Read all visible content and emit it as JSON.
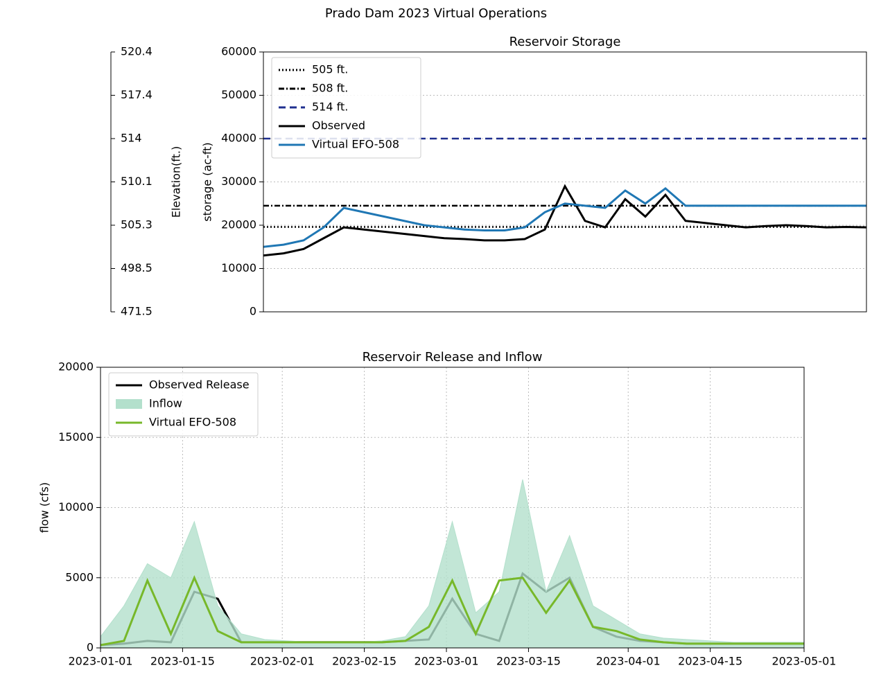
{
  "title": "Prado Dam 2023 Virtual Operations",
  "chart_data": [
    {
      "type": "line",
      "title": "Reservoir Storage",
      "ylabel": "storage (ac-ft)",
      "y2label": "Elevation(ft.)",
      "xlim": [
        "2023-01-01",
        "2023-05-01"
      ],
      "x": [
        "2023-01-01",
        "2023-01-05",
        "2023-01-09",
        "2023-01-13",
        "2023-01-17",
        "2023-01-21",
        "2023-01-25",
        "2023-01-29",
        "2023-02-02",
        "2023-02-06",
        "2023-02-10",
        "2023-02-14",
        "2023-02-18",
        "2023-02-22",
        "2023-02-26",
        "2023-03-02",
        "2023-03-06",
        "2023-03-10",
        "2023-03-14",
        "2023-03-18",
        "2023-03-22",
        "2023-03-26",
        "2023-03-30",
        "2023-04-03",
        "2023-04-07",
        "2023-04-11",
        "2023-04-15",
        "2023-04-19",
        "2023-04-23",
        "2023-04-27",
        "2023-05-01"
      ],
      "ylim": [
        0,
        60000
      ],
      "yticks": [
        0,
        10000,
        20000,
        30000,
        40000,
        50000,
        60000
      ],
      "y2ticks": [
        471.5,
        498.5,
        505.3,
        510.1,
        514.0,
        517.4,
        520.4
      ],
      "grid": true,
      "legend": "upper left",
      "hlines": [
        {
          "name": "505 ft.",
          "value": 19600,
          "color": "#000000",
          "dash": "2,3"
        },
        {
          "name": "508 ft.",
          "value": 24500,
          "color": "#000000",
          "dash": "8,3,2,3"
        },
        {
          "name": "514 ft.",
          "value": 40000,
          "color": "#1f2f8f",
          "dash": "10,6"
        }
      ],
      "series": [
        {
          "name": "Observed",
          "color": "#000000",
          "values": [
            13000,
            13500,
            14500,
            17000,
            19500,
            19000,
            18500,
            18000,
            17500,
            17000,
            16800,
            16500,
            16500,
            16800,
            19000,
            29000,
            21000,
            19500,
            26000,
            22000,
            27000,
            21000,
            20500,
            20000,
            19500,
            19800,
            20000,
            19800,
            19500,
            19600,
            19500
          ]
        },
        {
          "name": "Virtual EFO-508",
          "color": "#1f77b4",
          "values": [
            15000,
            15500,
            16500,
            19500,
            24000,
            23000,
            22000,
            21000,
            20000,
            19500,
            19000,
            18800,
            18800,
            19500,
            23000,
            25000,
            24500,
            24000,
            28000,
            25000,
            28500,
            24500,
            24500,
            24500,
            24500,
            24500,
            24500,
            24500,
            24500,
            24500,
            24500
          ]
        }
      ]
    },
    {
      "type": "line",
      "title": "Reservoir Release and Inflow",
      "ylabel": "flow (cfs)",
      "xlim": [
        "2023-01-01",
        "2023-05-01"
      ],
      "x": [
        "2023-01-01",
        "2023-01-05",
        "2023-01-09",
        "2023-01-13",
        "2023-01-17",
        "2023-01-21",
        "2023-01-25",
        "2023-01-29",
        "2023-02-02",
        "2023-02-06",
        "2023-02-10",
        "2023-02-14",
        "2023-02-18",
        "2023-02-22",
        "2023-02-26",
        "2023-03-02",
        "2023-03-06",
        "2023-03-10",
        "2023-03-14",
        "2023-03-18",
        "2023-03-22",
        "2023-03-26",
        "2023-03-30",
        "2023-04-03",
        "2023-04-07",
        "2023-04-11",
        "2023-04-15",
        "2023-04-19",
        "2023-04-23",
        "2023-04-27",
        "2023-05-01"
      ],
      "xticks": [
        "2023-01-01",
        "2023-01-15",
        "2023-02-01",
        "2023-02-15",
        "2023-03-01",
        "2023-03-15",
        "2023-04-01",
        "2023-04-15",
        "2023-05-01"
      ],
      "ylim": [
        0,
        20000
      ],
      "yticks": [
        0,
        5000,
        10000,
        15000,
        20000
      ],
      "grid": true,
      "legend": "upper left",
      "series": [
        {
          "name": "Observed Release",
          "color": "#000000",
          "values": [
            200,
            300,
            500,
            400,
            4000,
            3500,
            400,
            400,
            400,
            400,
            400,
            400,
            400,
            500,
            600,
            3500,
            1000,
            500,
            5300,
            4000,
            5000,
            1500,
            800,
            500,
            400,
            300,
            300,
            300,
            300,
            300,
            300
          ]
        },
        {
          "name": "Inflow",
          "color": "#b3e0cc",
          "area": true,
          "values": [
            800,
            3000,
            6000,
            5000,
            9000,
            3000,
            1000,
            600,
            500,
            400,
            400,
            400,
            500,
            800,
            3000,
            9000,
            2500,
            4000,
            12000,
            4000,
            8000,
            3000,
            2000,
            1000,
            700,
            600,
            500,
            400,
            400,
            400,
            400
          ]
        },
        {
          "name": "Virtual EFO-508",
          "color": "#77b82a",
          "values": [
            200,
            500,
            4800,
            1000,
            5000,
            1200,
            400,
            400,
            400,
            400,
            400,
            400,
            400,
            500,
            1500,
            4800,
            1000,
            4800,
            5000,
            2500,
            4800,
            1500,
            1200,
            600,
            400,
            300,
            300,
            300,
            300,
            300,
            300
          ]
        }
      ]
    }
  ]
}
